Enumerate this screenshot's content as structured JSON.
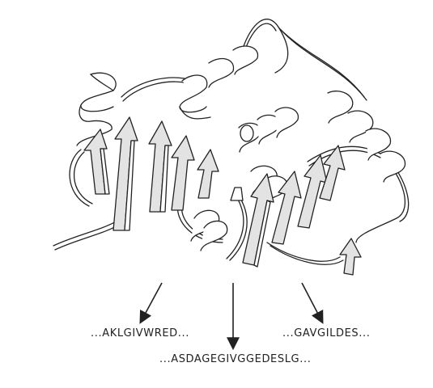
{
  "sequences": {
    "left": "...AKLGIVWRED...",
    "middle": "...ASDAGEGIVGGEDESLG...",
    "right": "...GAVGILDES..."
  },
  "colors": {
    "stroke": "#222222",
    "ribbon_fill": "#ffffff",
    "shade_fill": "#e3e3e3"
  }
}
